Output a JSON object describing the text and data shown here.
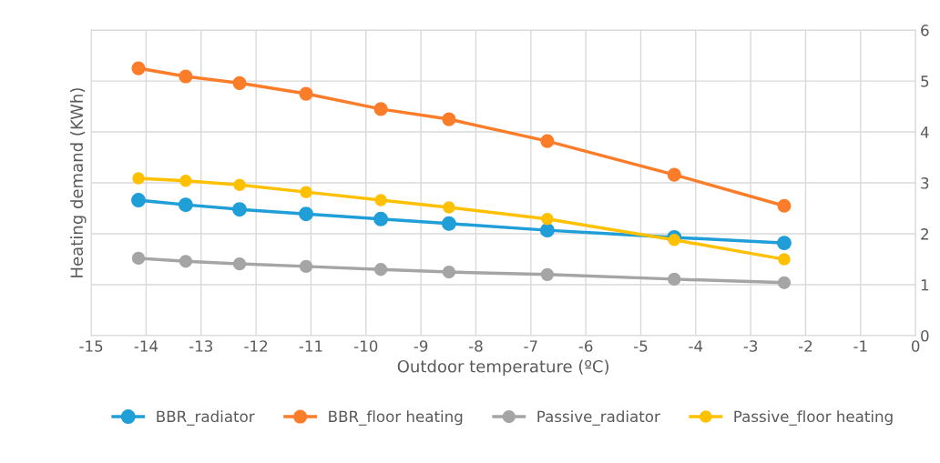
{
  "chart_data": {
    "type": "line",
    "xlabel": "Outdoor temperature (ºC)",
    "ylabel": "Heating demand (KWh)",
    "x": [
      -14.14,
      -13.28,
      -12.3,
      -11.09,
      -9.73,
      -8.49,
      -6.7,
      -4.39,
      -2.39
    ],
    "series": [
      {
        "name": "BBR_radiator",
        "color": "#1f9ed8",
        "values": [
          2.66,
          2.57,
          2.48,
          2.39,
          2.29,
          2.2,
          2.07,
          1.93,
          1.82
        ]
      },
      {
        "name": "BBR_floor heating",
        "color": "#fb7d2a",
        "values": [
          5.25,
          5.09,
          4.96,
          4.75,
          4.45,
          4.25,
          3.82,
          3.16,
          2.55
        ]
      },
      {
        "name": "Passive_radiator",
        "color": "#a5a5a5",
        "values": [
          1.52,
          1.46,
          1.41,
          1.36,
          1.3,
          1.25,
          1.2,
          1.11,
          1.04
        ]
      },
      {
        "name": "Passive_floor heating",
        "color": "#ffc000",
        "values": [
          3.09,
          3.04,
          2.96,
          2.82,
          2.66,
          2.52,
          2.29,
          1.88,
          1.5
        ]
      }
    ],
    "xlim": [
      -15,
      0
    ],
    "xticks": [
      -15,
      -14,
      -13,
      -12,
      -11,
      -10,
      -9,
      -8,
      -7,
      -6,
      -5,
      -4,
      -3,
      -2,
      -1,
      0
    ],
    "ylim": [
      0,
      6
    ],
    "yticks": [
      0,
      1,
      2,
      3,
      4,
      5,
      6
    ],
    "grid": true,
    "legend": "bottom",
    "marker": "circle",
    "line_style": "solid"
  }
}
